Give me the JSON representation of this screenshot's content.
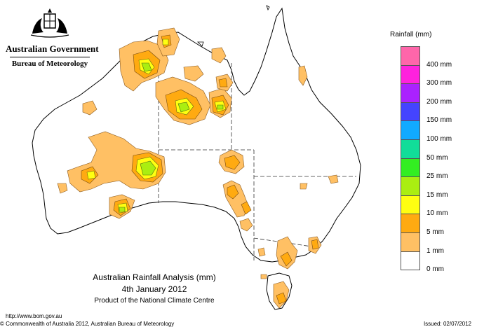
{
  "header": {
    "government": "Australian Government",
    "bureau": "Bureau of Meteorology"
  },
  "title": {
    "line1": "Australian Rainfall Analysis (mm)",
    "line2": "4th January 2012",
    "line3": "Product of the National Climate Centre"
  },
  "footer": {
    "url": "http://www.bom.gov.au",
    "copyright": "© Commonwealth of Australia 2012, Australian Bureau of Meteorology",
    "issued": "Issued: 02/07/2012"
  },
  "legend": {
    "title": "Rainfall (mm)",
    "items": [
      {
        "label": "",
        "color": "#ff66aa"
      },
      {
        "label": "400 mm",
        "color": "#ff22dd"
      },
      {
        "label": "300 mm",
        "color": "#aa22ff"
      },
      {
        "label": "200 mm",
        "color": "#4444ff"
      },
      {
        "label": "150 mm",
        "color": "#11aaff"
      },
      {
        "label": "100 mm",
        "color": "#11dd99"
      },
      {
        "label": "50 mm",
        "color": "#33ee22"
      },
      {
        "label": "25 mm",
        "color": "#aaee11"
      },
      {
        "label": "15 mm",
        "color": "#ffff11"
      },
      {
        "label": "10 mm",
        "color": "#ffaa11"
      },
      {
        "label": "5 mm",
        "color": "#ffc064"
      },
      {
        "label": "1 mm",
        "color": "#ffffff"
      },
      {
        "label": "0 mm",
        "color": ""
      }
    ]
  }
}
